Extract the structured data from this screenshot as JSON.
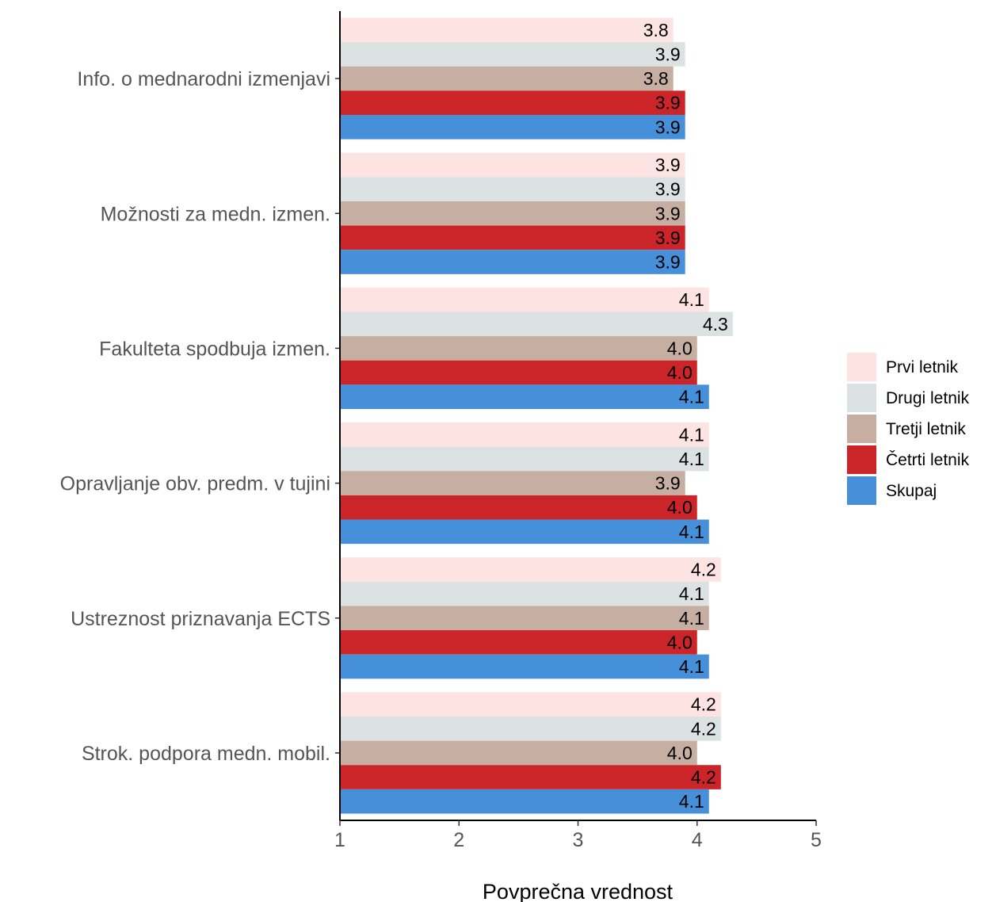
{
  "chart_data": {
    "type": "bar",
    "orientation": "horizontal",
    "categories": [
      "Info. o mednarodni izmenjavi",
      "Možnosti za medn. izmen.",
      "Fakulteta spodbuja izmen.",
      "Opravljanje obv. predm. v tujini",
      "Ustreznost priznavanja ECTS",
      "Strok. podpora medn. mobil."
    ],
    "series": [
      {
        "name": "Prvi letnik",
        "color": "#FDE3E1",
        "values": [
          3.8,
          3.9,
          4.1,
          4.1,
          4.2,
          4.2
        ]
      },
      {
        "name": "Drugi letnik",
        "color": "#DBE2E1",
        "values": [
          3.9,
          3.9,
          4.3,
          4.1,
          4.1,
          4.2
        ]
      },
      {
        "name": "Tretji letnik",
        "color": "#C6AEA2",
        "values": [
          3.8,
          3.9,
          4.0,
          3.9,
          4.1,
          4.0
        ]
      },
      {
        "name": "Četrti letnik",
        "color": "#CC2529",
        "values": [
          3.9,
          3.9,
          4.0,
          4.0,
          4.0,
          4.2
        ]
      },
      {
        "name": "Skupaj",
        "color": "#468FD9",
        "values": [
          3.9,
          3.9,
          4.1,
          4.1,
          4.1,
          4.1
        ]
      }
    ],
    "data_labels": [
      [
        "3.8",
        "3.9",
        "3.8",
        "3.9",
        "3.9"
      ],
      [
        "3.9",
        "3.9",
        "3.9",
        "3.9",
        "3.9"
      ],
      [
        "4.1",
        "4.3",
        "4.0",
        "4.0",
        "4.1"
      ],
      [
        "4.1",
        "4.1",
        "3.9",
        "4.0",
        "4.1"
      ],
      [
        "4.2",
        "4.1",
        "4.1",
        "4.0",
        "4.1"
      ],
      [
        "4.2",
        "4.2",
        "4.0",
        "4.2",
        "4.1"
      ]
    ],
    "xlabel": "Povprečna vrednost",
    "ylabel": "",
    "xlim": [
      1,
      5
    ],
    "xticks": [
      "1",
      "2",
      "3",
      "4",
      "5"
    ],
    "grid": false,
    "legend_position": "right"
  }
}
